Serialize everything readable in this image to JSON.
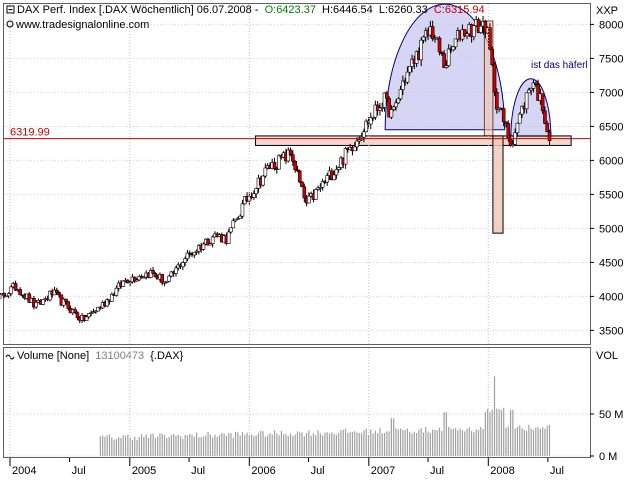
{
  "header": {
    "title": "DAX Perf. Index [.DAX  Wöchentlich] 06.07.2008 -",
    "open": "O:6423.37",
    "high": "H:6446.54",
    "low": "L:6260.33",
    "close": "C:6315.94",
    "axis_label": "XXP",
    "website": "www.tradesignalonline.com"
  },
  "colors": {
    "up_candle": "#ffffff",
    "down_candle": "#cc0000",
    "open_text": "#008000",
    "close_text": "#cc0000",
    "support_line": "#cc0000",
    "dome_fill": "#c8c8f0",
    "zone_fill": "#f0c8b8",
    "volume_bar": "#a0a0a0"
  },
  "annotations": {
    "support_value": "6319.99",
    "small_dome_label": "ist das häferl"
  },
  "volume": {
    "title": "Volume [None]",
    "value": "13100473",
    "symbol": "{.DAX}",
    "axis_label": "VOL",
    "ticks": [
      "50 M",
      "0 M"
    ]
  },
  "chart_data": {
    "type": "candlestick",
    "price_axis": {
      "ylim": [
        3300,
        8300
      ],
      "ticks": [
        3500,
        4000,
        4500,
        5000,
        5500,
        6000,
        6500,
        7000,
        7500,
        8000
      ]
    },
    "volume_axis": {
      "ylim": [
        0,
        100
      ],
      "ticks": [
        0,
        50
      ]
    },
    "x_ticks": [
      "2004",
      "Jul",
      "2005",
      "Jul",
      "2006",
      "Jul",
      "2007",
      "Jul",
      "2008",
      "Jul"
    ],
    "x_range": [
      "2003-10",
      "2008-10"
    ],
    "support_level": 6319.99,
    "path": [
      [
        "2003-10-05",
        3800
      ],
      [
        "2003-12-05",
        4000
      ],
      [
        "2004-01-20",
        4150
      ],
      [
        "2004-03-20",
        3850
      ],
      [
        "2004-05-10",
        4050
      ],
      [
        "2004-08-10",
        3650
      ],
      [
        "2004-10-15",
        3900
      ],
      [
        "2004-12-20",
        4250
      ],
      [
        "2005-03-05",
        4350
      ],
      [
        "2005-04-25",
        4200
      ],
      [
        "2005-06-15",
        4550
      ],
      [
        "2005-09-15",
        4900
      ],
      [
        "2005-10-25",
        4850
      ],
      [
        "2005-12-20",
        5400
      ],
      [
        "2006-03-01",
        5900
      ],
      [
        "2006-05-10",
        6100
      ],
      [
        "2006-06-10",
        5550
      ],
      [
        "2006-06-25",
        5350
      ],
      [
        "2006-10-10",
        6000
      ],
      [
        "2007-02-15",
        6900
      ],
      [
        "2007-03-15",
        6650
      ],
      [
        "2007-04-15",
        7150
      ],
      [
        "2007-07-10",
        7950
      ],
      [
        "2007-08-20",
        7400
      ],
      [
        "2007-10-10",
        7900
      ],
      [
        "2007-12-25",
        8000
      ],
      [
        "2008-01-25",
        6900
      ],
      [
        "2008-03-10",
        6250
      ],
      [
        "2008-05-15",
        7200
      ],
      [
        "2008-06-15",
        6800
      ],
      [
        "2008-07-06",
        6316
      ]
    ],
    "volume_base": 18,
    "volume_spikes": [
      [
        "2007-03-15",
        45
      ],
      [
        "2007-08-20",
        52
      ],
      [
        "2008-01-20",
        95
      ],
      [
        "2008-03-10",
        55
      ]
    ],
    "candle_interval_days": 7,
    "big_dome": {
      "start": "2007-02-20",
      "end": "2008-02-20",
      "base": 6450,
      "top": 8300
    },
    "small_dome": {
      "start": "2008-03-10",
      "end": "2008-07-10",
      "base": 6350,
      "top": 7200
    },
    "neckline_box": {
      "start": "2006-01-20",
      "end": "2008-09-10",
      "low": 6220,
      "high": 6360
    },
    "drop_box": {
      "start": "2008-01-15",
      "end": "2008-02-15",
      "low": 4930,
      "high": 6360
    },
    "marker_box": {
      "start": "2007-12-20",
      "end": "2008-01-15",
      "low": 6360,
      "high": 8050
    }
  }
}
